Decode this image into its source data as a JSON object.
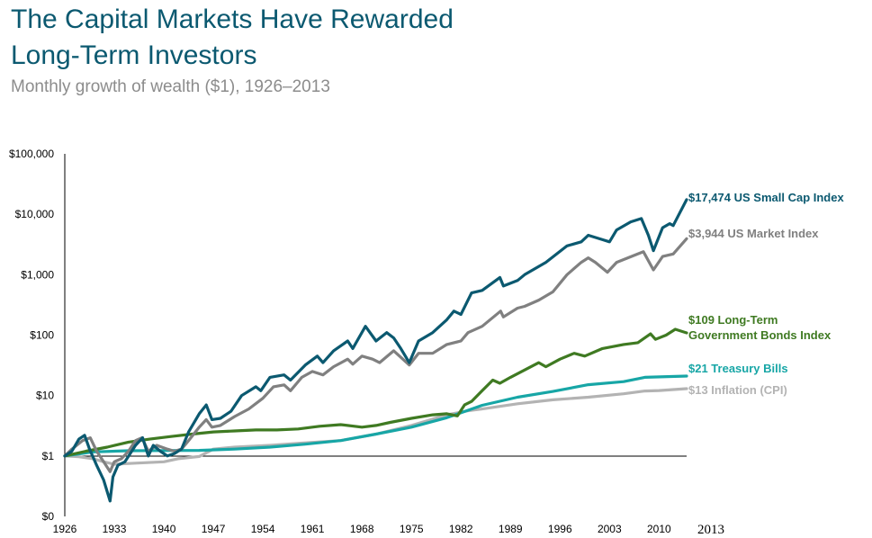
{
  "chart_data": {
    "type": "line",
    "title": "The Capital Markets Have Rewarded Long-Term Investors",
    "subtitle": "Monthly growth of wealth ($1), 1926–2013",
    "y_scale": "log",
    "ylim": [
      0.1,
      100000
    ],
    "xlim": [
      1926,
      2013.9
    ],
    "y_ticks": [
      {
        "value": 0.1,
        "label": "$0"
      },
      {
        "value": 1,
        "label": "$1"
      },
      {
        "value": 10,
        "label": "$10"
      },
      {
        "value": 100,
        "label": "$100"
      },
      {
        "value": 1000,
        "label": "$1,000"
      },
      {
        "value": 10000,
        "label": "$10,000"
      },
      {
        "value": 100000,
        "label": "$100,000"
      }
    ],
    "x_ticks": [
      "1926",
      "1933",
      "1940",
      "1947",
      "1954",
      "1961",
      "1968",
      "1975",
      "1982",
      "1989",
      "1996",
      "2003",
      "2010",
      "2013"
    ],
    "series": [
      {
        "name": "US Small Cap Index",
        "end_label": "$17,474 US Small Cap Index",
        "color": "#0b5970",
        "points": [
          [
            1926,
            1
          ],
          [
            1927,
            1.2
          ],
          [
            1928,
            1.9
          ],
          [
            1928.8,
            2.2
          ],
          [
            1929.5,
            1.3
          ],
          [
            1930.5,
            0.7
          ],
          [
            1931.5,
            0.4
          ],
          [
            1932.4,
            0.18
          ],
          [
            1932.8,
            0.45
          ],
          [
            1933.5,
            0.7
          ],
          [
            1934.5,
            0.8
          ],
          [
            1936,
            1.5
          ],
          [
            1937,
            2.0
          ],
          [
            1937.8,
            1.0
          ],
          [
            1938.5,
            1.5
          ],
          [
            1939.5,
            1.2
          ],
          [
            1940.5,
            1.0
          ],
          [
            1941.5,
            1.1
          ],
          [
            1942.5,
            1.3
          ],
          [
            1943.5,
            2.5
          ],
          [
            1945,
            5
          ],
          [
            1946,
            7
          ],
          [
            1946.8,
            4
          ],
          [
            1948,
            4.2
          ],
          [
            1949.5,
            5.5
          ],
          [
            1951,
            10
          ],
          [
            1953,
            14
          ],
          [
            1953.7,
            12
          ],
          [
            1955,
            20
          ],
          [
            1957,
            22
          ],
          [
            1957.9,
            18
          ],
          [
            1960,
            32
          ],
          [
            1961.7,
            45
          ],
          [
            1962.5,
            35
          ],
          [
            1964,
            55
          ],
          [
            1966,
            80
          ],
          [
            1966.7,
            60
          ],
          [
            1968.5,
            140
          ],
          [
            1970,
            80
          ],
          [
            1971.5,
            110
          ],
          [
            1972.5,
            90
          ],
          [
            1973.5,
            60
          ],
          [
            1974.7,
            35
          ],
          [
            1976,
            80
          ],
          [
            1978,
            110
          ],
          [
            1980,
            180
          ],
          [
            1981,
            250
          ],
          [
            1982,
            220
          ],
          [
            1983.5,
            500
          ],
          [
            1985,
            550
          ],
          [
            1987.5,
            900
          ],
          [
            1988,
            650
          ],
          [
            1990,
            800
          ],
          [
            1991,
            1000
          ],
          [
            1994,
            1600
          ],
          [
            1997,
            3000
          ],
          [
            1999,
            3500
          ],
          [
            2000,
            4500
          ],
          [
            2002,
            3800
          ],
          [
            2003,
            3500
          ],
          [
            2004,
            5500
          ],
          [
            2006,
            7500
          ],
          [
            2007.5,
            8500
          ],
          [
            2008.5,
            4500
          ],
          [
            2009.2,
            2500
          ],
          [
            2010.5,
            6000
          ],
          [
            2011.5,
            7000
          ],
          [
            2012,
            6500
          ],
          [
            2013.9,
            17474
          ]
        ]
      },
      {
        "name": "US Market Index",
        "end_label": "$3,944 US Market Index",
        "color": "#808080",
        "points": [
          [
            1926,
            1
          ],
          [
            1927,
            1.3
          ],
          [
            1928.5,
            1.8
          ],
          [
            1929.6,
            2.0
          ],
          [
            1930.5,
            1.2
          ],
          [
            1931.5,
            0.8
          ],
          [
            1932.4,
            0.55
          ],
          [
            1933,
            0.8
          ],
          [
            1934,
            0.9
          ],
          [
            1935,
            1.2
          ],
          [
            1936,
            1.8
          ],
          [
            1936.9,
            2.0
          ],
          [
            1937.8,
            1.2
          ],
          [
            1939,
            1.5
          ],
          [
            1940.5,
            1.3
          ],
          [
            1941.5,
            1.2
          ],
          [
            1942.5,
            1.3
          ],
          [
            1943.5,
            1.8
          ],
          [
            1945,
            3
          ],
          [
            1946,
            4
          ],
          [
            1946.8,
            3
          ],
          [
            1948,
            3.2
          ],
          [
            1950,
            4.5
          ],
          [
            1952,
            6
          ],
          [
            1954,
            9
          ],
          [
            1955.5,
            14
          ],
          [
            1957,
            15
          ],
          [
            1957.9,
            12
          ],
          [
            1959.5,
            20
          ],
          [
            1961,
            25
          ],
          [
            1962.5,
            22
          ],
          [
            1964,
            30
          ],
          [
            1966,
            40
          ],
          [
            1966.7,
            33
          ],
          [
            1968,
            45
          ],
          [
            1969.5,
            40
          ],
          [
            1970.5,
            35
          ],
          [
            1972.5,
            55
          ],
          [
            1974.7,
            32
          ],
          [
            1976,
            50
          ],
          [
            1978,
            50
          ],
          [
            1980,
            70
          ],
          [
            1982,
            80
          ],
          [
            1983,
            110
          ],
          [
            1985,
            140
          ],
          [
            1987.6,
            250
          ],
          [
            1988,
            200
          ],
          [
            1990,
            280
          ],
          [
            1991,
            300
          ],
          [
            1993,
            380
          ],
          [
            1995,
            520
          ],
          [
            1997,
            1000
          ],
          [
            1999,
            1600
          ],
          [
            2000,
            1900
          ],
          [
            2001,
            1600
          ],
          [
            2002.7,
            1100
          ],
          [
            2004,
            1600
          ],
          [
            2007.8,
            2400
          ],
          [
            2009.2,
            1200
          ],
          [
            2010.5,
            2000
          ],
          [
            2012,
            2200
          ],
          [
            2013.9,
            3944
          ]
        ]
      },
      {
        "name": "Long-Term Government Bonds Index",
        "end_label_lines": [
          "$109 Long-Term",
          "Government Bonds Index"
        ],
        "color": "#3f7a22",
        "points": [
          [
            1926,
            1
          ],
          [
            1929,
            1.2
          ],
          [
            1932,
            1.4
          ],
          [
            1935,
            1.7
          ],
          [
            1938,
            1.9
          ],
          [
            1941,
            2.1
          ],
          [
            1944,
            2.3
          ],
          [
            1947,
            2.5
          ],
          [
            1950,
            2.6
          ],
          [
            1953,
            2.7
          ],
          [
            1956,
            2.7
          ],
          [
            1959,
            2.8
          ],
          [
            1962,
            3.1
          ],
          [
            1965,
            3.3
          ],
          [
            1968,
            3.0
          ],
          [
            1970,
            3.2
          ],
          [
            1972,
            3.6
          ],
          [
            1975,
            4.2
          ],
          [
            1978,
            4.8
          ],
          [
            1980,
            5.0
          ],
          [
            1981.5,
            4.6
          ],
          [
            1982.5,
            7
          ],
          [
            1983.5,
            8
          ],
          [
            1985,
            12
          ],
          [
            1986.5,
            18
          ],
          [
            1987.5,
            16
          ],
          [
            1989,
            20
          ],
          [
            1993,
            35
          ],
          [
            1994,
            30
          ],
          [
            1996,
            40
          ],
          [
            1998,
            50
          ],
          [
            1999.5,
            45
          ],
          [
            2002,
            60
          ],
          [
            2005,
            70
          ],
          [
            2007,
            75
          ],
          [
            2008.8,
            105
          ],
          [
            2009.5,
            85
          ],
          [
            2011,
            100
          ],
          [
            2012.3,
            125
          ],
          [
            2013.9,
            109
          ]
        ]
      },
      {
        "name": "Treasury Bills",
        "end_label": "$21 Treasury Bills",
        "color": "#17a6a6",
        "points": [
          [
            1926,
            1
          ],
          [
            1930,
            1.17
          ],
          [
            1935,
            1.22
          ],
          [
            1940,
            1.23
          ],
          [
            1945,
            1.24
          ],
          [
            1950,
            1.3
          ],
          [
            1955,
            1.4
          ],
          [
            1960,
            1.57
          ],
          [
            1965,
            1.8
          ],
          [
            1970,
            2.3
          ],
          [
            1975,
            3.0
          ],
          [
            1980,
            4.3
          ],
          [
            1985,
            6.9
          ],
          [
            1990,
            9.4
          ],
          [
            1995,
            11.7
          ],
          [
            2000,
            15.1
          ],
          [
            2005,
            17.0
          ],
          [
            2008,
            20.0
          ],
          [
            2013.9,
            21
          ]
        ]
      },
      {
        "name": "Inflation (CPI)",
        "end_label": "$13 Inflation (CPI)",
        "color": "#b3b3b3",
        "points": [
          [
            1926,
            1
          ],
          [
            1928,
            0.97
          ],
          [
            1930,
            0.9
          ],
          [
            1931.5,
            0.8
          ],
          [
            1933,
            0.73
          ],
          [
            1936,
            0.76
          ],
          [
            1940,
            0.8
          ],
          [
            1942,
            0.9
          ],
          [
            1945,
            0.98
          ],
          [
            1947,
            1.3
          ],
          [
            1950,
            1.4
          ],
          [
            1955,
            1.5
          ],
          [
            1960,
            1.65
          ],
          [
            1965,
            1.8
          ],
          [
            1970,
            2.3
          ],
          [
            1975,
            3.2
          ],
          [
            1980,
            4.8
          ],
          [
            1983,
            5.6
          ],
          [
            1985,
            6.0
          ],
          [
            1990,
            7.3
          ],
          [
            1995,
            8.5
          ],
          [
            2000,
            9.4
          ],
          [
            2005,
            10.7
          ],
          [
            2008,
            11.9
          ],
          [
            2010,
            12.1
          ],
          [
            2013.9,
            13
          ]
        ]
      }
    ]
  }
}
